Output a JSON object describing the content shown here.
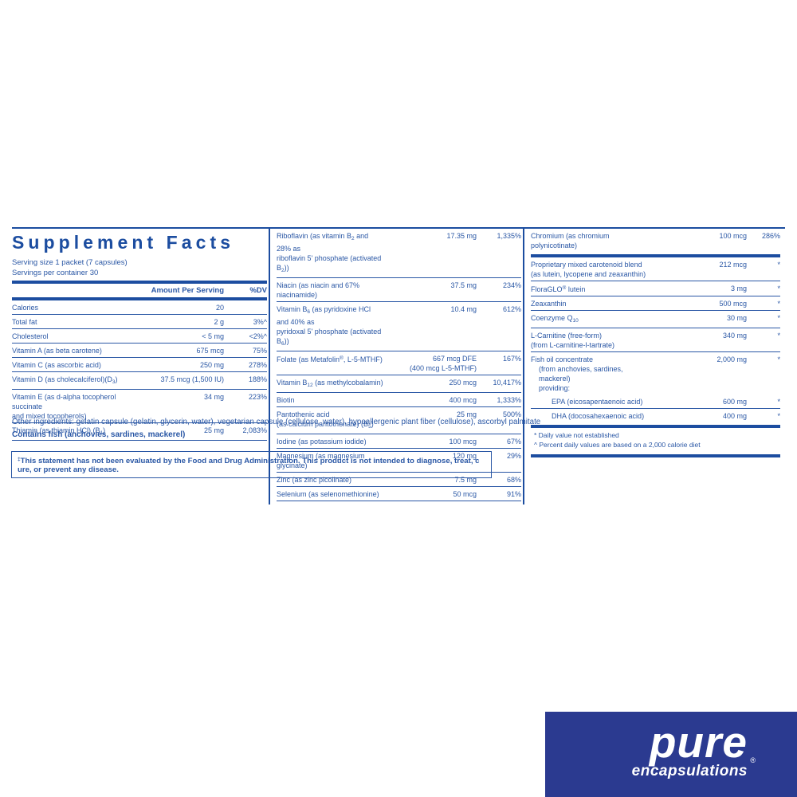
{
  "colors": {
    "text_blue": "#2a57a5",
    "bar_blue": "#1c4da0",
    "logo_background": "#2b3a90",
    "logo_text": "#ffffff"
  },
  "panel": {
    "title": "Supplement Facts",
    "serving_size": "Serving size  1 packet (7 capsules)",
    "servings_per_container": "Servings per container  30",
    "header_amount": "Amount Per Serving",
    "header_dv": "%DV",
    "left_rows": [
      {
        "name": "Calories",
        "amount": "20",
        "dv": ""
      },
      {
        "name": "Total fat",
        "amount": "2 g",
        "dv": "3%^"
      },
      {
        "name": "Cholesterol",
        "amount": "< 5 mg",
        "dv": "<2%^"
      },
      {
        "name": "Vitamin A (as beta carotene)",
        "amount": "675 mcg",
        "dv": "75%"
      },
      {
        "name": "Vitamin C (as ascorbic acid)",
        "amount": "250 mg",
        "dv": "278%"
      },
      {
        "name": "Vitamin D (as cholecalciferol)(D~3~)",
        "amount": "37.5 mcg (1,500 IU)",
        "dv": "188%"
      },
      {
        "name": "Vitamin E (as d-alpha tocopherol succinate",
        "name2": "and mixed tocopherols)",
        "amount": "34 mg",
        "dv": "223%"
      },
      {
        "name": "Thiamin (as thiamin HCl) (B~1~)",
        "amount": "25 mg",
        "dv": "2,083%"
      }
    ],
    "middle_rows": [
      {
        "name": "Riboflavin (as vitamin B~2~ and 28% as",
        "name2": "riboflavin 5' phosphate (activated B~2~))",
        "amount": "17.35 mg",
        "dv": "1,335%"
      },
      {
        "name": "Niacin (as niacin and 67% niacinamide)",
        "amount": "37.5 mg",
        "dv": "234%"
      },
      {
        "name": "Vitamin B~6~ (as pyridoxine HCl and 40% as",
        "name2": "pyridoxal 5' phosphate (activated B~6~))",
        "amount": "10.4 mg",
        "dv": "612%"
      },
      {
        "name": "Folate (as Metafolin^®^, L-5-MTHF)",
        "amount": "667 mcg DFE",
        "amount2": "(400 mcg L-5-MTHF)",
        "dv": "167%"
      },
      {
        "name": "Vitamin B~12~ (as methylcobalamin)",
        "amount": "250 mcg",
        "dv": "10,417%"
      },
      {
        "name": "Biotin",
        "amount": "400 mcg",
        "dv": "1,333%"
      },
      {
        "name": "Pantothenic acid",
        "name2": "(as calcium pantothenate) (B~5~)",
        "amount": "25 mg",
        "dv": "500%"
      },
      {
        "name": "Iodine (as potassium iodide)",
        "amount": "100 mcg",
        "dv": "67%"
      },
      {
        "name": "Magnesium (as magnesium glycinate)",
        "amount": "120 mg",
        "dv": "29%"
      },
      {
        "name": "Zinc (as zinc picolinate)",
        "amount": "7.5 mg",
        "dv": "68%"
      },
      {
        "name": "Selenium (as selenomethionine)",
        "amount": "50 mcg",
        "dv": "91%"
      }
    ],
    "right_rows": [
      {
        "name": "Chromium (as chromium polynicotinate)",
        "amount": "100 mcg",
        "dv": "286%",
        "barAfter": true
      },
      {
        "name": "Proprietary mixed carotenoid blend",
        "name2": "(as lutein, lycopene and zeaxanthin)",
        "amount": "212 mcg",
        "dv": "*"
      },
      {
        "name": "FloraGLO^®^ lutein",
        "amount": "3 mg",
        "dv": "*"
      },
      {
        "name": "Zeaxanthin",
        "amount": "500 mcg",
        "dv": "*"
      },
      {
        "name": "Coenzyme Q~10~",
        "amount": "30 mg",
        "dv": "*"
      },
      {
        "name": "L-Carnitine (free-form)",
        "name2": "(from L-carnitine-l-tartrate)",
        "amount": "340 mg",
        "dv": "*"
      },
      {
        "name": "Fish oil concentrate",
        "sublines": [
          "(from anchovies, sardines, mackerel)",
          "providing:"
        ],
        "amount": "2,000 mg",
        "dv": "*",
        "noBorder": true
      },
      {
        "name": "EPA (eicosapentaenoic acid)",
        "amount": "600 mg",
        "dv": "*",
        "indent": true
      },
      {
        "name": "DHA (docosahexaenoic acid)",
        "amount": "400 mg",
        "dv": "*",
        "indent": true,
        "barAfter": true
      }
    ],
    "right_footnotes": [
      "* Daily value not established",
      "^ Percent daily values are based on a 2,000 calorie diet"
    ]
  },
  "other_ingredients": "Other ingredients: gelatin capsule (gelatin, glycerin, water), vegetarian capsule (cellulose, water), hypoallergenic plant fiber (cellulose), ascorbyl palmitate",
  "contains": "Contains fish (anchovies, sardines, mackerel)",
  "statement": "^‡^This statement has not been evaluated by the Food and Drug Administration. This product is not intended to diagnose, treat, c ure, or prevent any disease.",
  "logo": {
    "brand": "pure",
    "sub": "encapsulations",
    "reg": "®"
  }
}
